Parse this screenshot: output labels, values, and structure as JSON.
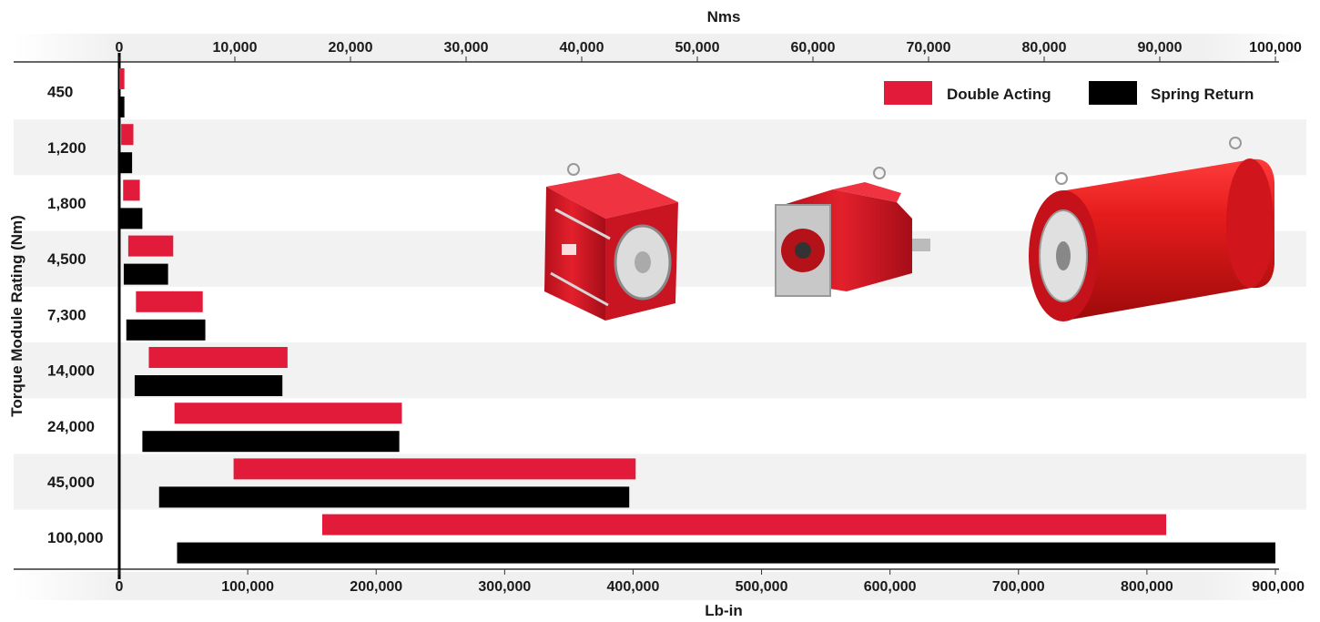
{
  "chart_data": {
    "type": "bar",
    "orientation": "horizontal",
    "title": "",
    "ylabel": "Torque Module Rating (Nm)",
    "top_axis": {
      "label": "Nms",
      "range": [
        0,
        100000
      ],
      "ticks": [
        "0",
        "10,000",
        "20,000",
        "30,000",
        "40,000",
        "50,000",
        "60,000",
        "70,000",
        "80,000",
        "90,000",
        "100,000"
      ]
    },
    "bottom_axis": {
      "label": "Lb-in",
      "range": [
        0,
        900000
      ],
      "ticks": [
        "0",
        "100,000",
        "200,000",
        "300,000",
        "400,000",
        "500,000",
        "600,000",
        "700,000",
        "800,000",
        "900,000"
      ]
    },
    "categories": [
      "450",
      "1,200",
      "1,800",
      "4,500",
      "7,300",
      "14,000",
      "24,000",
      "45,000",
      "100,000"
    ],
    "value_units": "Lb-in",
    "series": [
      {
        "name": "Double Acting",
        "color": "#e31b3b",
        "ranges": [
          [
            0,
            4000
          ],
          [
            1500,
            11000
          ],
          [
            3000,
            16000
          ],
          [
            7000,
            42000
          ],
          [
            13000,
            65000
          ],
          [
            23000,
            131000
          ],
          [
            43000,
            220000
          ],
          [
            89000,
            402000
          ],
          [
            158000,
            815000
          ]
        ]
      },
      {
        "name": "Spring Return",
        "color": "#000000",
        "ranges": [
          [
            0,
            4000
          ],
          [
            0,
            10000
          ],
          [
            0,
            18000
          ],
          [
            3500,
            38000
          ],
          [
            5500,
            67000
          ],
          [
            12000,
            127000
          ],
          [
            18000,
            218000
          ],
          [
            31000,
            397000
          ],
          [
            45000,
            900000
          ]
        ]
      }
    ],
    "legend_position": "top-right",
    "alternating_row_shading": true,
    "images": [
      "red-cubic-actuator-image",
      "red-compact-actuator-image",
      "red-cylinder-actuator-image"
    ]
  }
}
